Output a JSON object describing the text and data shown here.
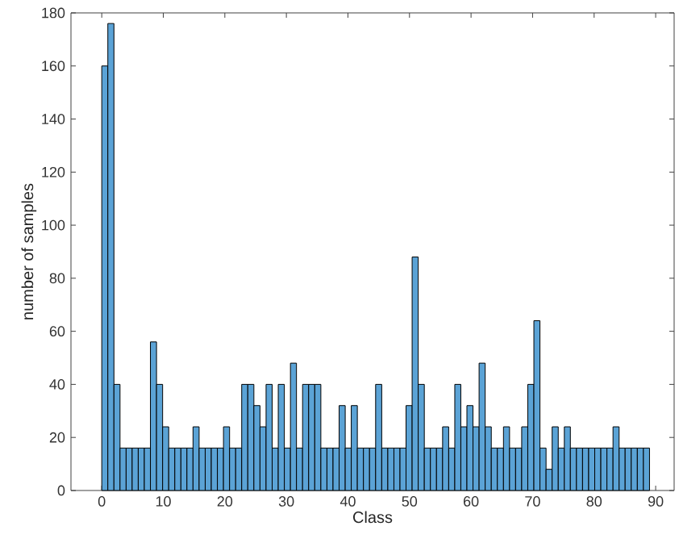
{
  "chart_data": {
    "type": "histogram",
    "xlabel": "Class",
    "ylabel": "number of samples",
    "bins": [
      0,
      0.99,
      1.98,
      2.97,
      3.96,
      4.94,
      5.93,
      6.92,
      7.91,
      8.9,
      9.89,
      10.88,
      11.87,
      12.86,
      13.84,
      14.83,
      15.82,
      16.81,
      17.8,
      18.79,
      19.78,
      20.77,
      21.76,
      22.74,
      23.73,
      24.72,
      25.71,
      26.7,
      27.69,
      28.68,
      29.67,
      30.66,
      31.64,
      32.63,
      33.62,
      34.61,
      35.6,
      36.59,
      37.58,
      38.57,
      39.56,
      40.54,
      41.53,
      42.52,
      43.51,
      44.5,
      45.49,
      46.48,
      47.47,
      48.46,
      49.44,
      50.43,
      51.42,
      52.41,
      53.4,
      54.39,
      55.38,
      56.37,
      57.36,
      58.34,
      59.33,
      60.32,
      61.31,
      62.3,
      63.29,
      64.28,
      65.27,
      66.26,
      67.24,
      68.23,
      69.22,
      70.21,
      71.2,
      72.19,
      73.18,
      74.17,
      75.16,
      76.14,
      77.13,
      78.12,
      79.11,
      80.1,
      81.09,
      82.08,
      83.07,
      84.06,
      85.04,
      86.03,
      87.02,
      88.01,
      89
    ],
    "values": [
      160,
      176,
      40,
      16,
      16,
      16,
      16,
      16,
      56,
      40,
      24,
      16,
      16,
      16,
      16,
      24,
      16,
      16,
      16,
      16,
      24,
      16,
      16,
      40,
      40,
      32,
      24,
      40,
      16,
      40,
      16,
      48,
      16,
      40,
      40,
      40,
      16,
      16,
      16,
      32,
      16,
      32,
      16,
      16,
      16,
      40,
      16,
      16,
      16,
      16,
      32,
      88,
      40,
      16,
      16,
      16,
      24,
      16,
      40,
      24,
      32,
      24,
      48,
      24,
      16,
      16,
      24,
      16,
      16,
      24,
      40,
      64,
      16,
      8,
      24,
      16,
      24,
      16,
      16,
      16,
      16,
      16,
      16,
      16,
      24,
      16,
      16,
      16,
      16,
      16
    ],
    "color": "#5ba3d6",
    "xlim": [
      -5,
      93
    ],
    "ylim": [
      0,
      180
    ],
    "xticks": [
      0,
      10,
      20,
      30,
      40,
      50,
      60,
      70,
      80,
      90
    ],
    "yticks": [
      0,
      20,
      40,
      60,
      80,
      100,
      120,
      140,
      160,
      180
    ]
  }
}
